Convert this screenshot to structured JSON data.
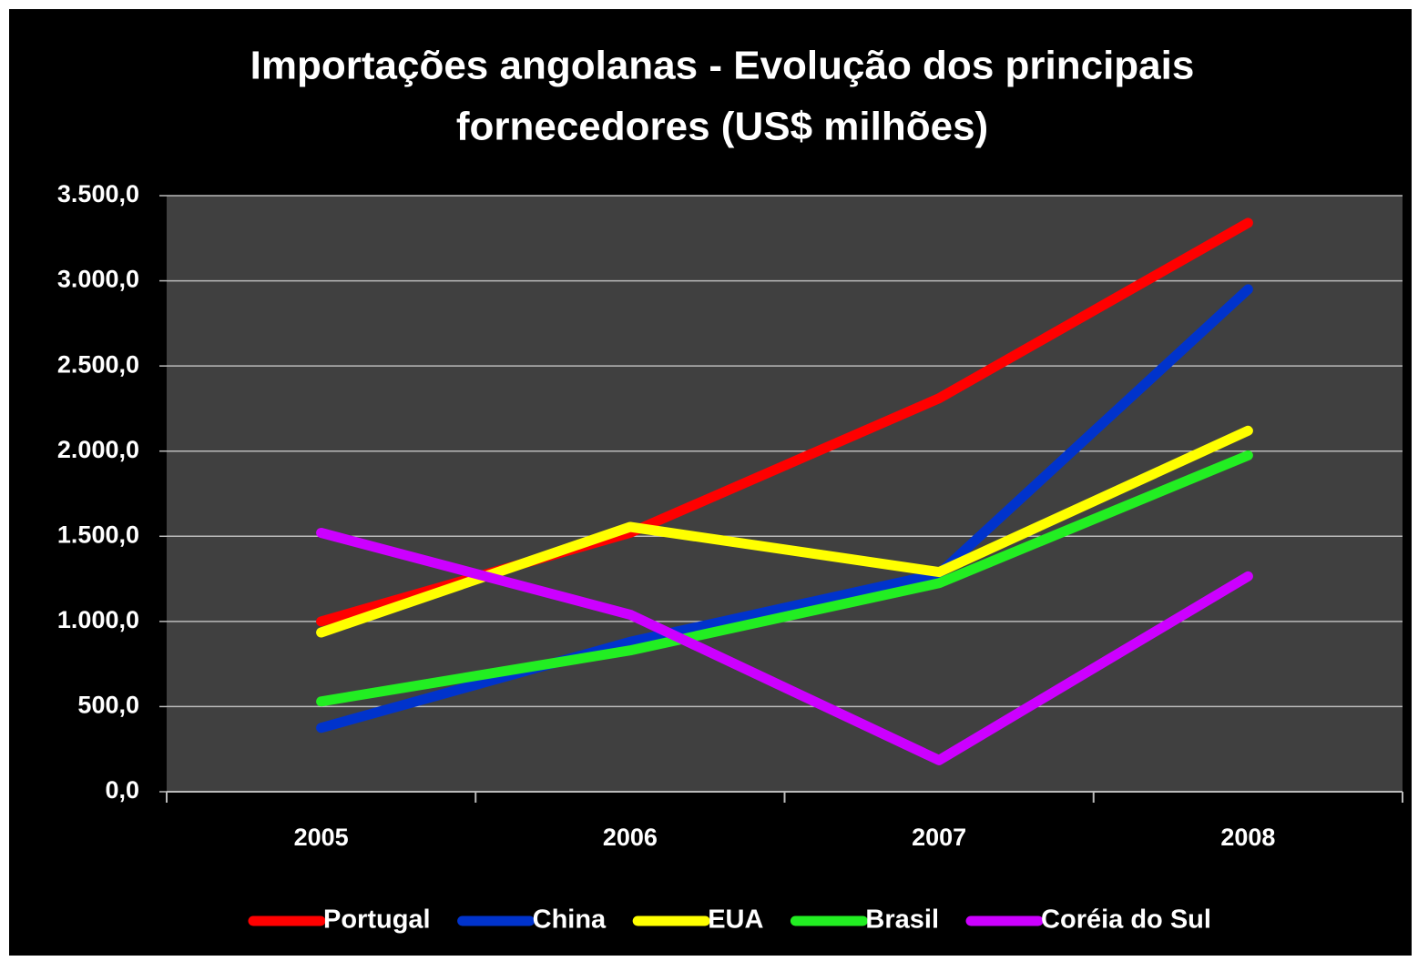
{
  "chart_data": {
    "type": "line",
    "title": [
      "Importações angolanas - Evolução dos principais",
      "fornecedores (US$ milhões)"
    ],
    "categories": [
      "2005",
      "2006",
      "2007",
      "2008"
    ],
    "series": [
      {
        "name": "Portugal",
        "color": "#ff0000",
        "values": [
          1000,
          1520,
          2310,
          3340
        ]
      },
      {
        "name": "China",
        "color": "#0033cc",
        "values": [
          375,
          880,
          1280,
          2950
        ]
      },
      {
        "name": "EUA",
        "color": "#ffff00",
        "values": [
          935,
          1555,
          1290,
          2120
        ]
      },
      {
        "name": "Brasil",
        "color": "#22ee22",
        "values": [
          530,
          830,
          1225,
          1975
        ]
      },
      {
        "name": "Coréia do Sul",
        "color": "#cc00ff",
        "values": [
          1520,
          1040,
          185,
          1265
        ]
      }
    ],
    "ylim": [
      0,
      3500
    ],
    "yticks": [
      {
        "value": 0,
        "label": "0,0"
      },
      {
        "value": 500,
        "label": "500,0"
      },
      {
        "value": 1000,
        "label": "1.000,0"
      },
      {
        "value": 1500,
        "label": "1.500,0"
      },
      {
        "value": 2000,
        "label": "2.000,0"
      },
      {
        "value": 2500,
        "label": "2.500,0"
      },
      {
        "value": 3000,
        "label": "3.000,0"
      },
      {
        "value": 3500,
        "label": "3.500,0"
      }
    ],
    "grid": true,
    "legend": "bottom"
  }
}
